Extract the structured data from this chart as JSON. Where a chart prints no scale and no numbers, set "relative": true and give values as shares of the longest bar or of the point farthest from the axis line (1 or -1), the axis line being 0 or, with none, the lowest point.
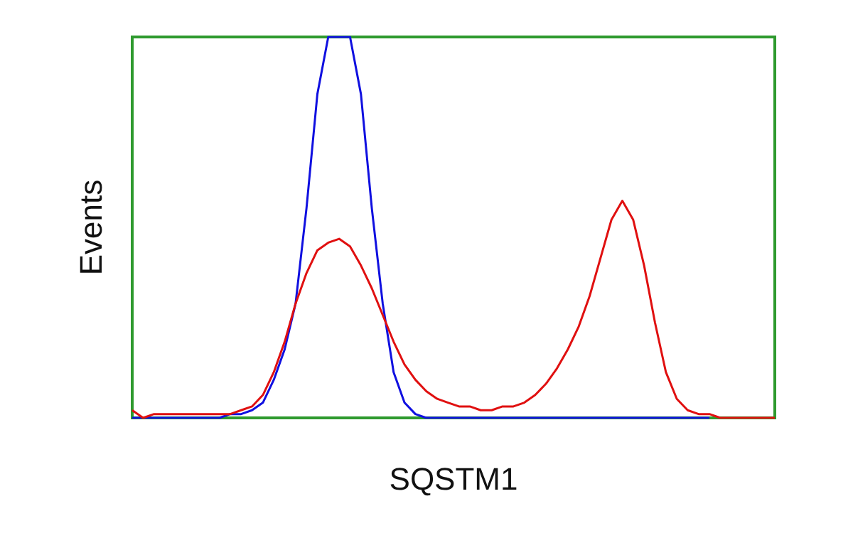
{
  "chart_data": {
    "type": "line",
    "xlabel": "SQSTM1",
    "ylabel": "Events",
    "relative": true,
    "grid": false,
    "marker": "none",
    "line_style": "solid",
    "categories": [
      null,
      null,
      null,
      null,
      null,
      null,
      null,
      null,
      null,
      null,
      null,
      null,
      null,
      null,
      null,
      null,
      null,
      null,
      null,
      null,
      null,
      null,
      null,
      null,
      null,
      null,
      null,
      null,
      null,
      null,
      null,
      null,
      null,
      null,
      null,
      null,
      null,
      null,
      null,
      null,
      null,
      null,
      null,
      null,
      null,
      null,
      null,
      null,
      null,
      null,
      null,
      null,
      null,
      null,
      null,
      null,
      null,
      null,
      null,
      null
    ],
    "series": [
      {
        "color": "#1010e0",
        "values": [
          0,
          0,
          0,
          0,
          0,
          0,
          0,
          0,
          0,
          0.01,
          0.01,
          0.02,
          0.04,
          0.1,
          0.18,
          0.3,
          0.55,
          0.85,
          1,
          1,
          1,
          0.85,
          0.55,
          0.3,
          0.12,
          0.04,
          0.01,
          0,
          0,
          0,
          0,
          0,
          0,
          0,
          0,
          0,
          0,
          0,
          0,
          0,
          0,
          0,
          0,
          0,
          0,
          0,
          0,
          0,
          0,
          0,
          0,
          0,
          0,
          0,
          null,
          null,
          null,
          null,
          null,
          null
        ]
      },
      {
        "color": "#e01010",
        "values": [
          0.02,
          0,
          0.01,
          0.01,
          0.01,
          0.01,
          0.01,
          0.01,
          0.01,
          0.01,
          0.02,
          0.03,
          0.06,
          0.12,
          0.2,
          0.3,
          0.38,
          0.44,
          0.46,
          0.47,
          0.45,
          0.4,
          0.34,
          0.27,
          0.2,
          0.14,
          0.1,
          0.07,
          0.05,
          0.04,
          0.03,
          0.03,
          0.02,
          0.02,
          0.03,
          0.03,
          0.04,
          0.06,
          0.09,
          0.13,
          0.18,
          0.24,
          0.32,
          0.42,
          0.52,
          0.57,
          0.52,
          0.4,
          0.25,
          0.12,
          0.05,
          0.02,
          0.01,
          0.01,
          0,
          0,
          0,
          0,
          0,
          0
        ]
      }
    ]
  }
}
